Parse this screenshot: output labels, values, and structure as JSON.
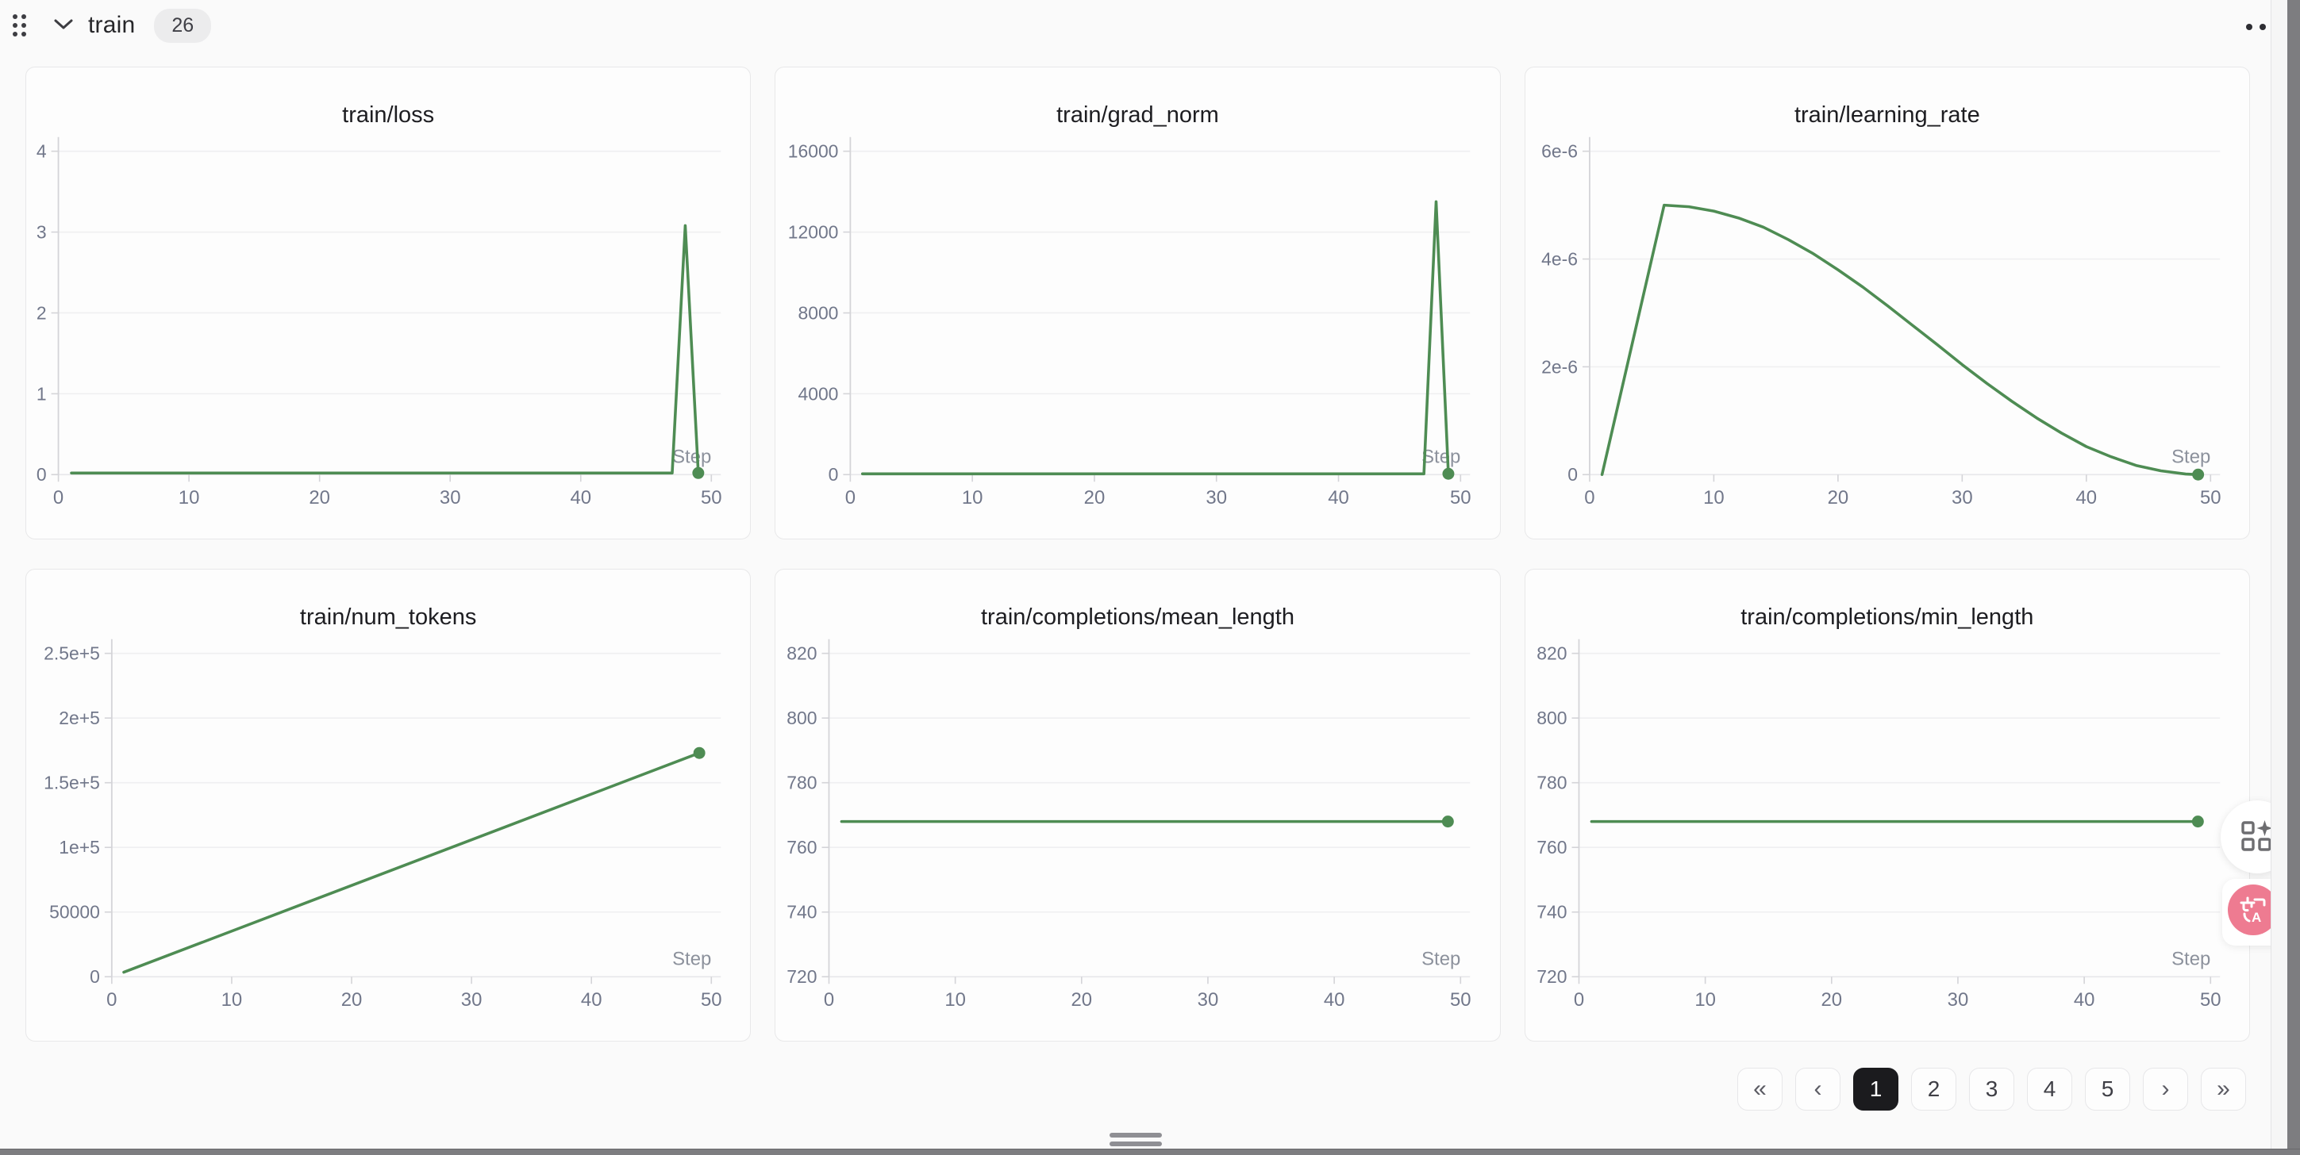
{
  "header": {
    "title": "train",
    "badge": "26"
  },
  "colors": {
    "accent_green": "#4e8c53",
    "page_bg": "#fafafa",
    "card_bg": "#fdfdfd",
    "card_border": "#e8e8e9",
    "grid_line": "#efeff1",
    "axis_line": "#d4d4d8",
    "tick_text": "#71778a",
    "step_label": "#8c919c",
    "pagination_active_bg": "#1b1b1e",
    "translate_button_pink": "#ee7b91",
    "scrollbar_thumb": "#7d7d80"
  },
  "icons": [
    "drag-dots-icon",
    "chevron-down-icon",
    "ellipsis-menu-icon",
    "widgets-sparkle-icon",
    "translate-icon"
  ],
  "pagination": {
    "items": [
      {
        "label": "«",
        "name": "first-page-button",
        "nav": true,
        "active": false
      },
      {
        "label": "‹",
        "name": "prev-page-button",
        "nav": true,
        "active": false
      },
      {
        "label": "1",
        "name": "page-1-button",
        "nav": false,
        "active": true
      },
      {
        "label": "2",
        "name": "page-2-button",
        "nav": false,
        "active": false
      },
      {
        "label": "3",
        "name": "page-3-button",
        "nav": false,
        "active": false
      },
      {
        "label": "4",
        "name": "page-4-button",
        "nav": false,
        "active": false
      },
      {
        "label": "5",
        "name": "page-5-button",
        "nav": false,
        "active": false
      },
      {
        "label": "›",
        "name": "next-page-button",
        "nav": true,
        "active": false
      },
      {
        "label": "»",
        "name": "last-page-button",
        "nav": true,
        "active": false
      }
    ]
  },
  "chart_data": [
    {
      "type": "line",
      "title": "train/loss",
      "xlabel": "Step",
      "x_ticks": [
        0,
        10,
        20,
        30,
        40,
        50
      ],
      "xlim": [
        0,
        50
      ],
      "y_ticks": [
        0,
        1,
        2,
        3,
        4
      ],
      "y_tick_labels": [
        "0",
        "1",
        "2",
        "3",
        "4"
      ],
      "points": [
        [
          1,
          0.02
        ],
        [
          47,
          0.02
        ],
        [
          48,
          3.08
        ],
        [
          49,
          0.02
        ]
      ],
      "end_marker": [
        49,
        0.02
      ]
    },
    {
      "type": "line",
      "title": "train/grad_norm",
      "xlabel": "Step",
      "x_ticks": [
        0,
        10,
        20,
        30,
        40,
        50
      ],
      "xlim": [
        0,
        50
      ],
      "y_ticks": [
        0,
        4000,
        8000,
        12000,
        16000
      ],
      "y_tick_labels": [
        "0",
        "4000",
        "8000",
        "12000",
        "16000"
      ],
      "points": [
        [
          1,
          40
        ],
        [
          47,
          40
        ],
        [
          48,
          13500
        ],
        [
          49,
          40
        ]
      ],
      "end_marker": [
        49,
        40
      ]
    },
    {
      "type": "line",
      "title": "train/learning_rate",
      "xlabel": "Step",
      "x_ticks": [
        0,
        10,
        20,
        30,
        40,
        50
      ],
      "xlim": [
        0,
        50
      ],
      "y_ticks": [
        0,
        2e-06,
        4e-06,
        6e-06
      ],
      "y_tick_labels": [
        "0",
        "2e-6",
        "4e-6",
        "6e-6"
      ],
      "points": [
        [
          1,
          0
        ],
        [
          2,
          1e-06
        ],
        [
          3,
          2e-06
        ],
        [
          4,
          3e-06
        ],
        [
          5,
          4e-06
        ],
        [
          6,
          5e-06
        ],
        [
          8,
          4.97e-06
        ],
        [
          10,
          4.89e-06
        ],
        [
          12,
          4.76e-06
        ],
        [
          14,
          4.59e-06
        ],
        [
          16,
          4.36e-06
        ],
        [
          18,
          4.1e-06
        ],
        [
          20,
          3.8e-06
        ],
        [
          22,
          3.48e-06
        ],
        [
          24,
          3.13e-06
        ],
        [
          26,
          2.77e-06
        ],
        [
          28,
          2.41e-06
        ],
        [
          30,
          2.04e-06
        ],
        [
          32,
          1.69e-06
        ],
        [
          34,
          1.36e-06
        ],
        [
          36,
          1.05e-06
        ],
        [
          38,
          7.7e-07
        ],
        [
          40,
          5.2e-07
        ],
        [
          42,
          3.3e-07
        ],
        [
          44,
          1.7e-07
        ],
        [
          46,
          7e-08
        ],
        [
          48,
          1e-08
        ],
        [
          49,
          0
        ]
      ],
      "end_marker": [
        49,
        0
      ]
    },
    {
      "type": "line",
      "title": "train/num_tokens",
      "xlabel": "Step",
      "x_ticks": [
        0,
        10,
        20,
        30,
        40,
        50
      ],
      "xlim": [
        0,
        50
      ],
      "y_ticks": [
        0,
        50000,
        100000,
        150000,
        200000,
        250000
      ],
      "y_tick_labels": [
        "0",
        "50000",
        "1e+5",
        "1.5e+5",
        "2e+5",
        "2.5e+5"
      ],
      "points": [
        [
          1,
          3500
        ],
        [
          49,
          173000
        ]
      ],
      "end_marker": [
        49,
        173000
      ]
    },
    {
      "type": "line",
      "title": "train/completions/mean_length",
      "xlabel": "Step",
      "x_ticks": [
        0,
        10,
        20,
        30,
        40,
        50
      ],
      "xlim": [
        0,
        50
      ],
      "y_ticks": [
        720,
        740,
        760,
        780,
        800,
        820
      ],
      "y_tick_labels": [
        "720",
        "740",
        "760",
        "780",
        "800",
        "820"
      ],
      "points": [
        [
          1,
          768
        ],
        [
          49,
          768
        ]
      ],
      "end_marker": [
        49,
        768
      ]
    },
    {
      "type": "line",
      "title": "train/completions/min_length",
      "xlabel": "Step",
      "x_ticks": [
        0,
        10,
        20,
        30,
        40,
        50
      ],
      "xlim": [
        0,
        50
      ],
      "y_ticks": [
        720,
        740,
        760,
        780,
        800,
        820
      ],
      "y_tick_labels": [
        "720",
        "740",
        "760",
        "780",
        "800",
        "820"
      ],
      "points": [
        [
          1,
          768
        ],
        [
          49,
          768
        ]
      ],
      "end_marker": [
        49,
        768
      ]
    }
  ]
}
